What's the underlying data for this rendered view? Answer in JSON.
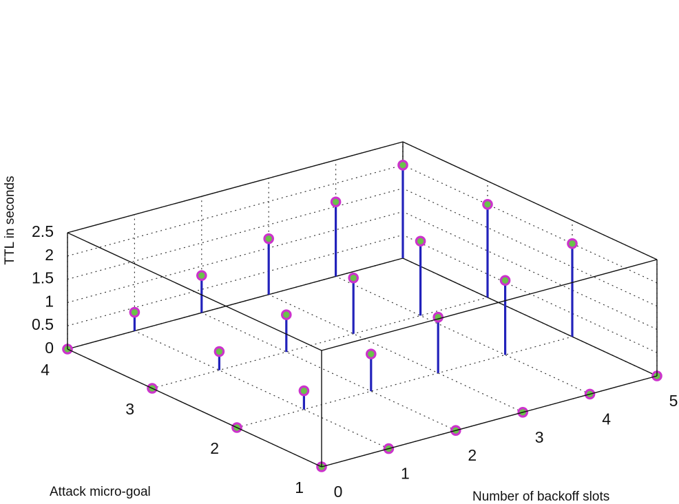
{
  "chart_data": {
    "type": "stem3",
    "xlabel": "Number of backoff slots",
    "ylabel": "Attack micro-goal",
    "zlabel": "TTL in seconds",
    "x_ticks": [
      "0",
      "1",
      "2",
      "3",
      "4",
      "5"
    ],
    "y_ticks": [
      "1",
      "2",
      "3",
      "4"
    ],
    "z_ticks": [
      "0",
      "0.5",
      "1",
      "1.5",
      "2",
      "2.5"
    ],
    "xlim": [
      0,
      5
    ],
    "ylim": [
      1,
      4
    ],
    "zlim": [
      0,
      2.5
    ],
    "grid": true,
    "colors": {
      "stem": "#2222bb",
      "marker_face": "#6ac24a",
      "marker_edge": "#cc33cc"
    },
    "points": [
      {
        "x": 0,
        "y": 1,
        "z": 0
      },
      {
        "x": 0,
        "y": 2,
        "z": 0
      },
      {
        "x": 0,
        "y": 3,
        "z": 0
      },
      {
        "x": 0,
        "y": 4,
        "z": 0
      },
      {
        "x": 1,
        "y": 1,
        "z": 0
      },
      {
        "x": 2,
        "y": 1,
        "z": 0
      },
      {
        "x": 3,
        "y": 1,
        "z": 0
      },
      {
        "x": 4,
        "y": 1,
        "z": 0
      },
      {
        "x": 5,
        "y": 1,
        "z": 0
      },
      {
        "x": 1,
        "y": 2,
        "z": 0.4
      },
      {
        "x": 1,
        "y": 3,
        "z": 0.4
      },
      {
        "x": 1,
        "y": 4,
        "z": 0.4
      },
      {
        "x": 2,
        "y": 2,
        "z": 0.8
      },
      {
        "x": 2,
        "y": 3,
        "z": 0.8
      },
      {
        "x": 2,
        "y": 4,
        "z": 0.8
      },
      {
        "x": 3,
        "y": 2,
        "z": 1.2
      },
      {
        "x": 3,
        "y": 3,
        "z": 1.2
      },
      {
        "x": 3,
        "y": 4,
        "z": 1.2
      },
      {
        "x": 4,
        "y": 2,
        "z": 1.6
      },
      {
        "x": 4,
        "y": 3,
        "z": 1.6
      },
      {
        "x": 4,
        "y": 4,
        "z": 1.6
      },
      {
        "x": 5,
        "y": 2,
        "z": 2.0
      },
      {
        "x": 5,
        "y": 3,
        "z": 2.0
      },
      {
        "x": 5,
        "y": 4,
        "z": 2.0
      }
    ]
  }
}
